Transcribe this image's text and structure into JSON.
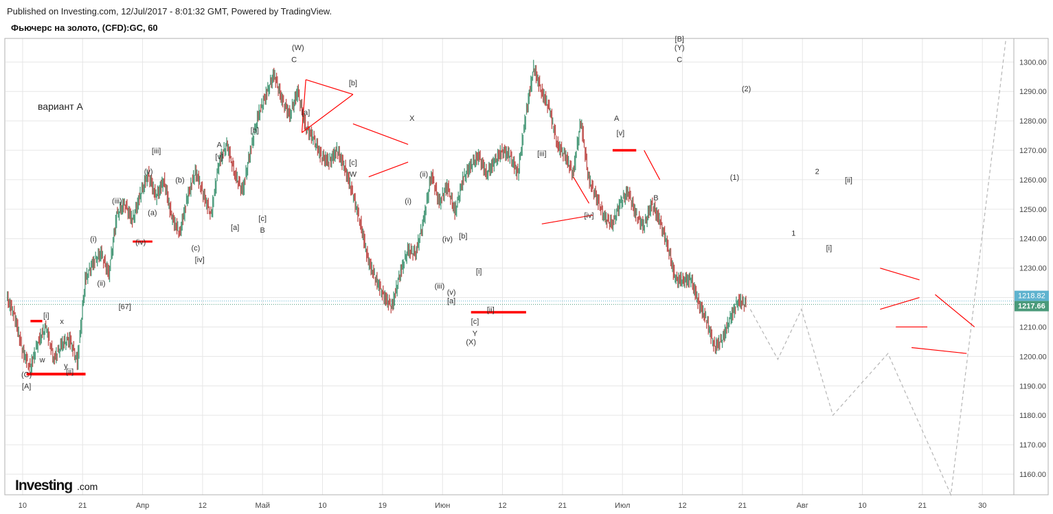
{
  "header": {
    "published_line": "Published on Investing.com, 12/Jul/2017 - 8:01:32 GMT, Powered by TradingView.",
    "instrument_line": "Фьючерс на золото, (CFD):GC, 60"
  },
  "chart_data": {
    "type": "line",
    "title": "Фьючерс на золото, (CFD):GC, 60",
    "variant_label": "вариант А",
    "ylim": [
      1153,
      1308
    ],
    "y_ticks": [
      1160,
      1170,
      1180,
      1190,
      1200,
      1210,
      1220,
      1230,
      1240,
      1250,
      1260,
      1270,
      1280,
      1290,
      1300
    ],
    "y_tick_labels": [
      "1160.00",
      "1170.00",
      "1180.00",
      "1190.00",
      "1200.00",
      "1210.00",
      "1220.00",
      "1230.00",
      "1240.00",
      "1250.00",
      "1260.00",
      "1270.00",
      "1280.00",
      "1290.00",
      "1300.00"
    ],
    "x_ticks": [
      "10",
      "21",
      "Апр",
      "12",
      "Май",
      "10",
      "19",
      "Июн",
      "12",
      "21",
      "Июл",
      "12",
      "21",
      "Авг",
      "10",
      "21",
      "30"
    ],
    "grid": true,
    "last_price_labels": {
      "upper": "1218.82",
      "lower": "1217.66",
      "upper_value": 1218.82,
      "lower_value": 1217.66,
      "upper_color": "#5fb3cf",
      "lower_color": "#4a9a7a"
    },
    "colors": {
      "up": "#4a9a7a",
      "down": "#c0504d",
      "annotation_red": "#ff0000",
      "projection": "#b5b5b5",
      "grid": "#e6e6e6",
      "tick_text": "#444444"
    },
    "price_path": [
      [
        0,
        1220
      ],
      [
        1,
        1214
      ],
      [
        2,
        1202
      ],
      [
        3,
        1196
      ],
      [
        4,
        1205
      ],
      [
        5,
        1210
      ],
      [
        6,
        1199
      ],
      [
        7,
        1204
      ],
      [
        8,
        1206
      ],
      [
        9,
        1198
      ],
      [
        10,
        1226
      ],
      [
        11,
        1232
      ],
      [
        12,
        1235
      ],
      [
        13,
        1228
      ],
      [
        14,
        1248
      ],
      [
        15,
        1252
      ],
      [
        16,
        1246
      ],
      [
        17,
        1255
      ],
      [
        18,
        1262
      ],
      [
        19,
        1254
      ],
      [
        20,
        1260
      ],
      [
        21,
        1247
      ],
      [
        22,
        1242
      ],
      [
        23,
        1254
      ],
      [
        24,
        1263
      ],
      [
        25,
        1255
      ],
      [
        26,
        1248
      ],
      [
        27,
        1266
      ],
      [
        28,
        1272
      ],
      [
        29,
        1262
      ],
      [
        30,
        1256
      ],
      [
        31,
        1270
      ],
      [
        32,
        1282
      ],
      [
        33,
        1289
      ],
      [
        34,
        1296
      ],
      [
        35,
        1287
      ],
      [
        36,
        1282
      ],
      [
        37,
        1290
      ],
      [
        38,
        1278
      ],
      [
        39,
        1274
      ],
      [
        40,
        1268
      ],
      [
        41,
        1266
      ],
      [
        42,
        1270
      ],
      [
        43,
        1264
      ],
      [
        44,
        1255
      ],
      [
        45,
        1245
      ],
      [
        46,
        1232
      ],
      [
        47,
        1226
      ],
      [
        48,
        1220
      ],
      [
        49,
        1217
      ],
      [
        50,
        1228
      ],
      [
        51,
        1236
      ],
      [
        52,
        1235
      ],
      [
        53,
        1246
      ],
      [
        54,
        1262
      ],
      [
        55,
        1252
      ],
      [
        56,
        1258
      ],
      [
        57,
        1249
      ],
      [
        58,
        1260
      ],
      [
        59,
        1265
      ],
      [
        60,
        1268
      ],
      [
        61,
        1262
      ],
      [
        62,
        1266
      ],
      [
        63,
        1270
      ],
      [
        64,
        1268
      ],
      [
        65,
        1262
      ],
      [
        66,
        1282
      ],
      [
        67,
        1298
      ],
      [
        68,
        1290
      ],
      [
        69,
        1284
      ],
      [
        70,
        1272
      ],
      [
        71,
        1268
      ],
      [
        72,
        1262
      ],
      [
        73,
        1280
      ],
      [
        74,
        1260
      ],
      [
        75,
        1254
      ],
      [
        76,
        1247
      ],
      [
        77,
        1245
      ],
      [
        78,
        1252
      ],
      [
        79,
        1256
      ],
      [
        80,
        1248
      ],
      [
        81,
        1244
      ],
      [
        82,
        1252
      ],
      [
        83,
        1246
      ],
      [
        84,
        1238
      ],
      [
        85,
        1226
      ],
      [
        86,
        1226
      ],
      [
        87,
        1226
      ],
      [
        88,
        1218
      ],
      [
        89,
        1212
      ],
      [
        90,
        1203
      ],
      [
        91,
        1206
      ],
      [
        92,
        1213
      ],
      [
        93,
        1219
      ],
      [
        94,
        1217.66
      ]
    ],
    "projection_path": [
      [
        94.5,
        1216
      ],
      [
        98,
        1199
      ],
      [
        101,
        1216
      ],
      [
        105,
        1180
      ],
      [
        112,
        1201
      ],
      [
        120,
        1153
      ],
      [
        127,
        1308
      ]
    ],
    "annotations": [
      {
        "text": "(C)",
        "x": 2.5,
        "y": 1193
      },
      {
        "text": "[A]",
        "x": 2.5,
        "y": 1189
      },
      {
        "text": "[i]",
        "x": 5,
        "y": 1213
      },
      {
        "text": "x",
        "x": 7,
        "y": 1211
      },
      {
        "text": "w",
        "x": 4.5,
        "y": 1198
      },
      {
        "text": "y",
        "x": 7.5,
        "y": 1196
      },
      {
        "text": "[ii]",
        "x": 8,
        "y": 1194
      },
      {
        "text": "[67]",
        "x": 15,
        "y": 1216
      },
      {
        "text": "(i)",
        "x": 11,
        "y": 1239
      },
      {
        "text": "(ii)",
        "x": 12,
        "y": 1224
      },
      {
        "text": "(iii)",
        "x": 14,
        "y": 1252
      },
      {
        "text": "(iv)",
        "x": 17,
        "y": 1238
      },
      {
        "text": "(a)",
        "x": 18.5,
        "y": 1248
      },
      {
        "text": "[iii]",
        "x": 19,
        "y": 1269
      },
      {
        "text": "(v)",
        "x": 18,
        "y": 1262
      },
      {
        "text": "(b)",
        "x": 22,
        "y": 1259
      },
      {
        "text": "(c)",
        "x": 24,
        "y": 1236
      },
      {
        "text": "[iv]",
        "x": 24.5,
        "y": 1232
      },
      {
        "text": "A",
        "x": 27,
        "y": 1271
      },
      {
        "text": "[v]",
        "x": 27,
        "y": 1267
      },
      {
        "text": "[a]",
        "x": 29,
        "y": 1243
      },
      {
        "text": "[b]",
        "x": 31.5,
        "y": 1276
      },
      {
        "text": "[c]",
        "x": 32.5,
        "y": 1246
      },
      {
        "text": "B",
        "x": 32.5,
        "y": 1242
      },
      {
        "text": "(W)",
        "x": 37,
        "y": 1304
      },
      {
        "text": "C",
        "x": 36.5,
        "y": 1300
      },
      {
        "text": "[a]",
        "x": 38,
        "y": 1282
      },
      {
        "text": "[b]",
        "x": 44,
        "y": 1292
      },
      {
        "text": "X",
        "x": 51.5,
        "y": 1280
      },
      {
        "text": "[c]",
        "x": 44,
        "y": 1265
      },
      {
        "text": "W",
        "x": 44,
        "y": 1261
      },
      {
        "text": "(ii)",
        "x": 53,
        "y": 1261
      },
      {
        "text": "(i)",
        "x": 51,
        "y": 1252
      },
      {
        "text": "(iv)",
        "x": 56,
        "y": 1239
      },
      {
        "text": "[b]",
        "x": 58,
        "y": 1240
      },
      {
        "text": "(iii)",
        "x": 55,
        "y": 1223
      },
      {
        "text": "(v)",
        "x": 56.5,
        "y": 1221
      },
      {
        "text": "[a]",
        "x": 56.5,
        "y": 1218
      },
      {
        "text": "[i]",
        "x": 60,
        "y": 1228
      },
      {
        "text": "[ii]",
        "x": 61.5,
        "y": 1215
      },
      {
        "text": "[c]",
        "x": 59.5,
        "y": 1211
      },
      {
        "text": "Y",
        "x": 59.5,
        "y": 1207
      },
      {
        "text": "(X)",
        "x": 59,
        "y": 1204
      },
      {
        "text": "[iii]",
        "x": 68,
        "y": 1268
      },
      {
        "text": "[iv]",
        "x": 74,
        "y": 1247
      },
      {
        "text": "A",
        "x": 77.5,
        "y": 1280
      },
      {
        "text": "[v]",
        "x": 78,
        "y": 1275
      },
      {
        "text": "B",
        "x": 82.5,
        "y": 1253
      },
      {
        "text": "[B]",
        "x": 85.5,
        "y": 1307
      },
      {
        "text": "(Y)",
        "x": 85.5,
        "y": 1304
      },
      {
        "text": "C",
        "x": 85.5,
        "y": 1300
      },
      {
        "text": "(2)",
        "x": 94,
        "y": 1290
      },
      {
        "text": "(1)",
        "x": 92.5,
        "y": 1260
      },
      {
        "text": "2",
        "x": 103,
        "y": 1262
      },
      {
        "text": "[ii]",
        "x": 107,
        "y": 1259
      },
      {
        "text": "1",
        "x": 100,
        "y": 1241
      },
      {
        "text": "[i]",
        "x": 104.5,
        "y": 1236
      }
    ]
  }
}
